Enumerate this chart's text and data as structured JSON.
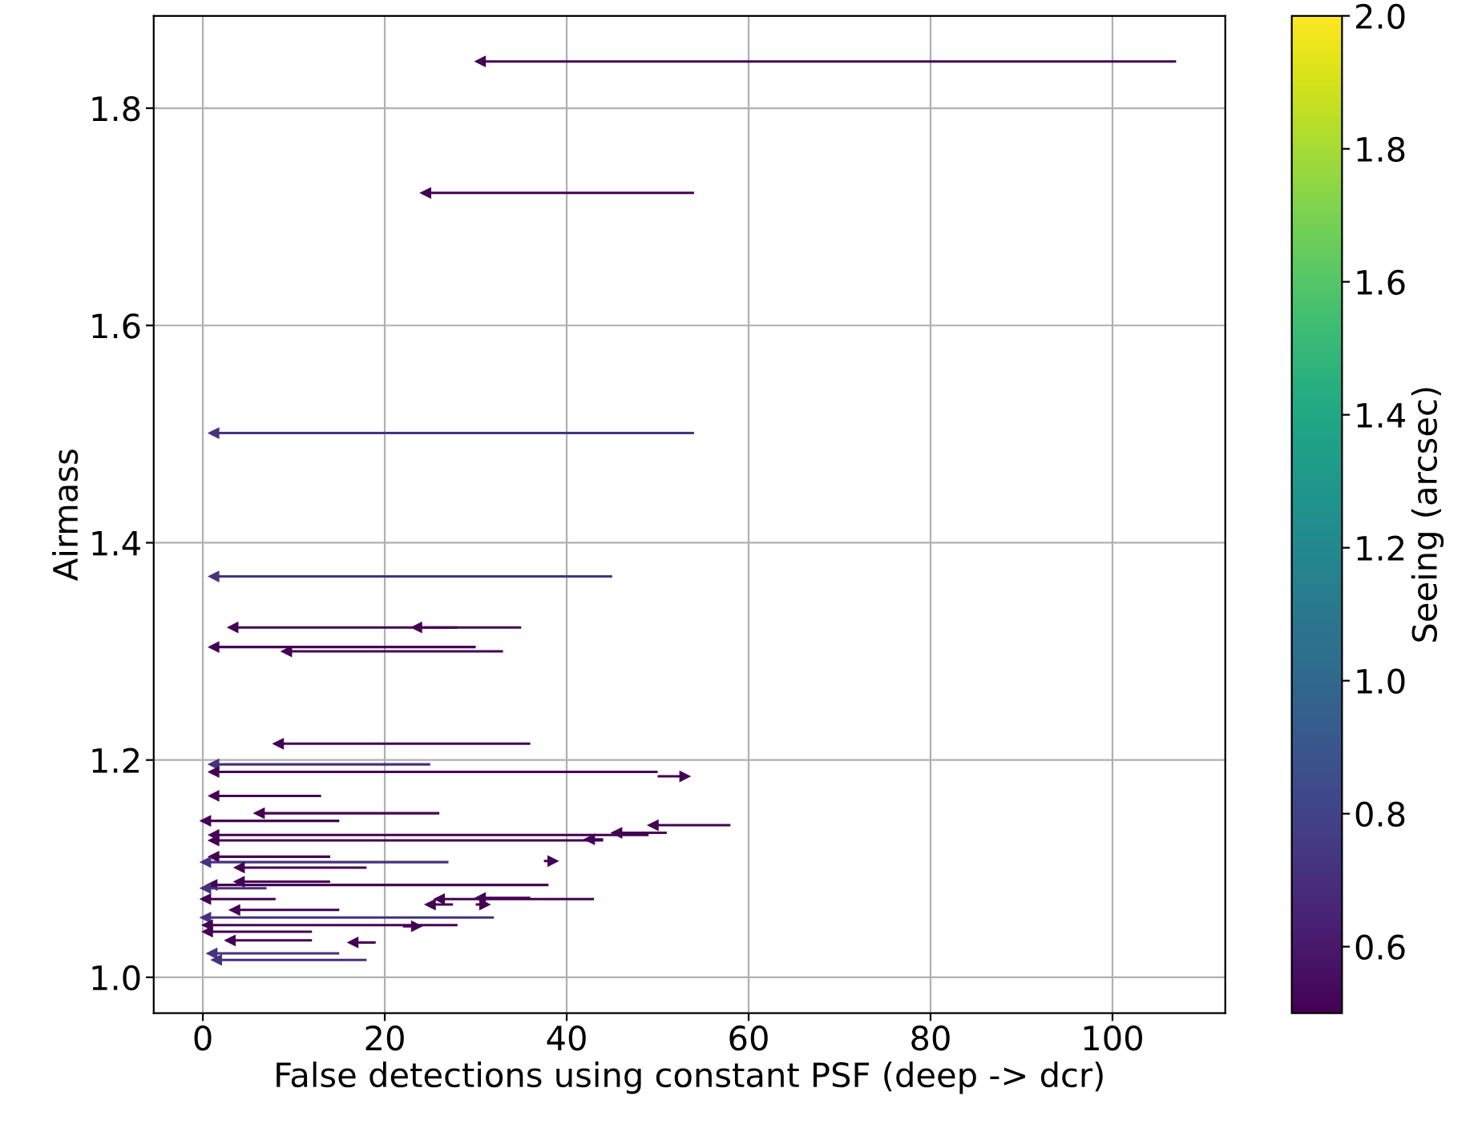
{
  "chart_data": {
    "type": "line",
    "xlabel": "False detections using constant PSF (deep -> dcr)",
    "ylabel": "Airmass",
    "clabel": "Seeing (arcsec)",
    "xlim": [
      -5.4,
      112.4
    ],
    "ylim": [
      0.967,
      1.885
    ],
    "xticks": [
      0,
      20,
      40,
      60,
      80,
      100
    ],
    "yticks": [
      {
        "value": 1.0,
        "label": "1.0"
      },
      1.2,
      1.4,
      1.6,
      1.8
    ],
    "clim": [
      0.5,
      2.0
    ],
    "cticks": [
      0.6,
      0.8,
      {
        "value": 1.0,
        "label": "1.0"
      },
      1.2,
      1.4,
      1.6,
      1.8,
      {
        "value": 2.0,
        "label": "2.0"
      }
    ],
    "grid": true,
    "marker": "triangle",
    "line_style": "solid",
    "series": [
      {
        "color": "#440154",
        "x": [
          107,
          30.5
        ],
        "values": [
          1.843,
          1.843
        ]
      },
      {
        "color": "#440154",
        "x": [
          54,
          24.5
        ],
        "values": [
          1.722,
          1.722
        ]
      },
      {
        "color": "#46327e",
        "x": [
          54,
          1.2
        ],
        "values": [
          1.501,
          1.501
        ]
      },
      {
        "color": "#46327e",
        "x": [
          45,
          1.2
        ],
        "values": [
          1.369,
          1.369
        ]
      },
      {
        "color": "#440154",
        "x": [
          35,
          3.3
        ],
        "values": [
          1.322,
          1.322
        ]
      },
      {
        "color": "#440154",
        "x": [
          28,
          23.5
        ],
        "values": [
          1.322,
          1.322
        ]
      },
      {
        "color": "#440154",
        "x": [
          30,
          1.2
        ],
        "values": [
          1.304,
          1.304
        ]
      },
      {
        "color": "#440154",
        "x": [
          33,
          9.2
        ],
        "values": [
          1.3,
          1.3
        ]
      },
      {
        "color": "#440154",
        "x": [
          36,
          8.3
        ],
        "values": [
          1.215,
          1.215
        ]
      },
      {
        "color": "#46327e",
        "x": [
          25,
          1.2
        ],
        "values": [
          1.196,
          1.196
        ]
      },
      {
        "color": "#440154",
        "x": [
          50,
          1.2
        ],
        "values": [
          1.189,
          1.189
        ]
      },
      {
        "color": "#440154",
        "x": [
          50,
          53
        ],
        "values": [
          1.185,
          1.185
        ]
      },
      {
        "color": "#440154",
        "x": [
          13,
          1.2
        ],
        "values": [
          1.167,
          1.167
        ]
      },
      {
        "color": "#440154",
        "x": [
          26,
          6.2
        ],
        "values": [
          1.151,
          1.151
        ]
      },
      {
        "color": "#440154",
        "x": [
          15,
          0.3
        ],
        "values": [
          1.144,
          1.144
        ]
      },
      {
        "color": "#440154",
        "x": [
          58,
          49.5
        ],
        "values": [
          1.14,
          1.14
        ]
      },
      {
        "color": "#440154",
        "x": [
          51,
          45.5
        ],
        "values": [
          1.133,
          1.133
        ]
      },
      {
        "color": "#440154",
        "x": [
          49,
          1.2
        ],
        "values": [
          1.131,
          1.131
        ]
      },
      {
        "color": "#440154",
        "x": [
          44,
          42.5
        ],
        "values": [
          1.127,
          1.127
        ]
      },
      {
        "color": "#440154",
        "x": [
          44,
          1.2
        ],
        "values": [
          1.126,
          1.126
        ]
      },
      {
        "color": "#440154",
        "x": [
          14,
          1.2
        ],
        "values": [
          1.111,
          1.111
        ]
      },
      {
        "color": "#46327e",
        "x": [
          27,
          0.3
        ],
        "values": [
          1.106,
          1.106
        ]
      },
      {
        "color": "#440154",
        "x": [
          37.5,
          38.5
        ],
        "values": [
          1.107,
          1.107
        ]
      },
      {
        "color": "#440154",
        "x": [
          18,
          4
        ],
        "values": [
          1.101,
          1.101
        ]
      },
      {
        "color": "#440154",
        "x": [
          14,
          4
        ],
        "values": [
          1.088,
          1.088
        ]
      },
      {
        "color": "#440154",
        "x": [
          38,
          1
        ],
        "values": [
          1.085,
          1.085
        ]
      },
      {
        "color": "#46327e",
        "x": [
          7,
          0.3
        ],
        "values": [
          1.082,
          1.082
        ]
      },
      {
        "color": "#440154",
        "x": [
          43,
          26
        ],
        "values": [
          1.072,
          1.072
        ]
      },
      {
        "color": "#440154",
        "x": [
          36,
          30.5
        ],
        "values": [
          1.073,
          1.073
        ]
      },
      {
        "color": "#440154",
        "x": [
          8,
          0.3
        ],
        "values": [
          1.072,
          1.072
        ]
      },
      {
        "color": "#440154",
        "x": [
          27.5,
          25
        ],
        "values": [
          1.067,
          1.067
        ]
      },
      {
        "color": "#440154",
        "x": [
          30,
          31
        ],
        "values": [
          1.067,
          1.067
        ]
      },
      {
        "color": "#440154",
        "x": [
          15,
          3.5
        ],
        "values": [
          1.062,
          1.062
        ]
      },
      {
        "color": "#46327e",
        "x": [
          32,
          0.3
        ],
        "values": [
          1.055,
          1.055
        ]
      },
      {
        "color": "#440154",
        "x": [
          28,
          0.5
        ],
        "values": [
          1.048,
          1.048
        ]
      },
      {
        "color": "#440154",
        "x": [
          22,
          23.5
        ],
        "values": [
          1.047,
          1.047
        ]
      },
      {
        "color": "#440154",
        "x": [
          12,
          0.5
        ],
        "values": [
          1.042,
          1.042
        ]
      },
      {
        "color": "#440154",
        "x": [
          12,
          3
        ],
        "values": [
          1.034,
          1.034
        ]
      },
      {
        "color": "#440154",
        "x": [
          19,
          16.5
        ],
        "values": [
          1.032,
          1.032
        ]
      },
      {
        "color": "#46327e",
        "x": [
          15,
          1
        ],
        "values": [
          1.022,
          1.022
        ]
      },
      {
        "color": "#46327e",
        "x": [
          18,
          1.5
        ],
        "values": [
          1.016,
          1.016
        ]
      }
    ]
  }
}
